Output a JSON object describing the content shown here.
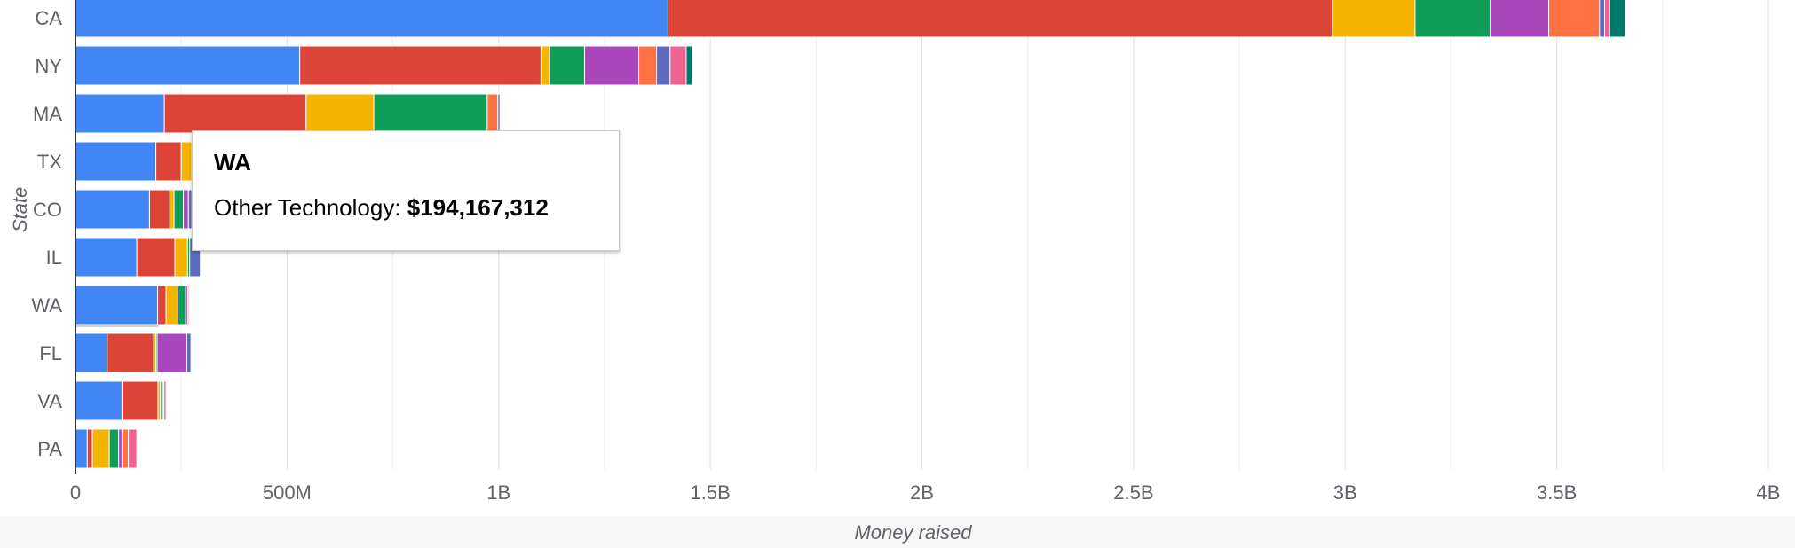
{
  "chart_data": {
    "type": "bar",
    "orientation": "horizontal",
    "stacked": true,
    "xlabel": "Money raised",
    "ylabel": "State",
    "xlim": [
      0,
      4000000000
    ],
    "x_ticks": [
      "0",
      "500M",
      "1B",
      "1.5B",
      "2B",
      "2.5B",
      "3B",
      "3.5B",
      "4B"
    ],
    "categories": [
      "CA",
      "NY",
      "MA",
      "TX",
      "CO",
      "IL",
      "WA",
      "FL",
      "VA",
      "PA"
    ],
    "series": [
      {
        "color": "#4285f4",
        "values": [
          1400000000,
          530000000,
          210000000,
          190000000,
          175000000,
          145000000,
          194167312,
          75000000,
          110000000,
          28000000
        ]
      },
      {
        "color": "#db4437",
        "values": [
          1570000000,
          570000000,
          335000000,
          60000000,
          48000000,
          90000000,
          20000000,
          110000000,
          85000000,
          12000000
        ]
      },
      {
        "color": "#f4b400",
        "values": [
          195000000,
          20000000,
          160000000,
          25000000,
          10000000,
          30000000,
          28000000,
          5000000,
          6000000,
          40000000
        ]
      },
      {
        "color": "#0f9d58",
        "values": [
          178000000,
          83000000,
          268000000,
          15000000,
          22000000,
          5000000,
          18000000,
          3000000,
          5000000,
          22000000
        ]
      },
      {
        "color": "#ab47bc",
        "values": [
          138000000,
          128000000,
          0,
          10000000,
          12000000,
          0,
          5000000,
          70000000,
          3000000,
          8000000
        ]
      },
      {
        "color": "#ff7043",
        "values": [
          120000000,
          42000000,
          25000000,
          5000000,
          0,
          0,
          0,
          0,
          0,
          15000000
        ]
      },
      {
        "color": "#5c6bc0",
        "values": [
          12000000,
          32000000,
          5000000,
          8000000,
          8000000,
          25000000,
          0,
          10000000,
          0,
          0
        ]
      },
      {
        "color": "#f06292",
        "values": [
          12000000,
          38000000,
          0,
          0,
          0,
          0,
          3000000,
          0,
          5000000,
          20000000
        ]
      },
      {
        "color": "#00796b",
        "values": [
          37000000,
          14000000,
          0,
          0,
          0,
          0,
          0,
          0,
          0,
          0
        ]
      }
    ]
  },
  "tooltip": {
    "title": "WA",
    "label": "Other Technology: ",
    "value": "$194,167,312"
  },
  "axis_titles": {
    "x": "Money raised",
    "y": "State"
  }
}
